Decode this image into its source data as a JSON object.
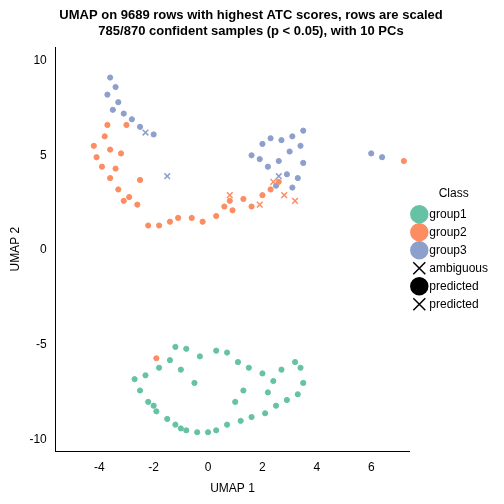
{
  "chart_data": {
    "type": "scatter",
    "title": [
      "UMAP on 9689 rows with highest ATC scores, rows are scaled",
      "785/870 confident samples (p < 0.05), with 10 PCs"
    ],
    "x_label": "UMAP 1",
    "y_label": "UMAP 2",
    "xlim": [
      -5.6,
      7.4
    ],
    "ylim": [
      -10.6,
      10.7
    ],
    "xticks": [
      -4,
      -2,
      0,
      2,
      4,
      6
    ],
    "yticks": [
      -10,
      -5,
      0,
      5,
      10
    ],
    "grid": false,
    "legend": "right",
    "legend_title": "Class",
    "series": [
      {
        "name": "group1",
        "color": "#66C2A5",
        "marker": "circle",
        "values": [
          [
            -2.7,
            -6.8
          ],
          [
            -2.5,
            -7.4
          ],
          [
            -2.2,
            -8.0
          ],
          [
            -1.9,
            -8.5
          ],
          [
            -1.5,
            -8.9
          ],
          [
            -1.2,
            -9.2
          ],
          [
            -0.8,
            -9.5
          ],
          [
            -0.4,
            -9.6
          ],
          [
            0,
            -9.6
          ],
          [
            0.3,
            -9.5
          ],
          [
            0.7,
            -9.2
          ],
          [
            1.2,
            -9.0
          ],
          [
            1.6,
            -8.8
          ],
          [
            2.1,
            -8.6
          ],
          [
            2.5,
            -8.2
          ],
          [
            2.9,
            -7.9
          ],
          [
            3.3,
            -7.6
          ],
          [
            3.5,
            -7.0
          ],
          [
            3.4,
            -6.2
          ],
          [
            3.2,
            -5.9
          ],
          [
            2.7,
            -6.3
          ],
          [
            2.4,
            -6.9
          ],
          [
            2.0,
            -6.5
          ],
          [
            1.5,
            -6.2
          ],
          [
            1.1,
            -5.9
          ],
          [
            0.7,
            -5.4
          ],
          [
            0.3,
            -5.3
          ],
          [
            -0.3,
            -5.6
          ],
          [
            -0.8,
            -5.2
          ],
          [
            -1.2,
            -5.1
          ],
          [
            -1.4,
            -5.8
          ],
          [
            -1.8,
            -6.2
          ],
          [
            -2.3,
            -6.6
          ],
          [
            -1.0,
            -6.3
          ],
          [
            -0.5,
            -7.0
          ],
          [
            1.3,
            -7.4
          ],
          [
            1.0,
            -8.0
          ],
          [
            -1.0,
            -9.4
          ],
          [
            -2.0,
            -8.2
          ],
          [
            2.2,
            -7.5
          ]
        ]
      },
      {
        "name": "group2",
        "color": "#FC8D62",
        "marker": "circle",
        "values": [
          [
            -3.7,
            6.6
          ],
          [
            -3.8,
            6.0
          ],
          [
            -4.2,
            5.5
          ],
          [
            -4.1,
            4.9
          ],
          [
            -3.6,
            5.3
          ],
          [
            -3.2,
            5.1
          ],
          [
            -3.4,
            4.3
          ],
          [
            -3.6,
            3.8
          ],
          [
            -3.3,
            3.2
          ],
          [
            -2.9,
            2.8
          ],
          [
            -2.6,
            2.4
          ],
          [
            -3.1,
            2.6
          ],
          [
            -2.2,
            1.3
          ],
          [
            -1.8,
            1.3
          ],
          [
            -1.4,
            1.5
          ],
          [
            -1.1,
            1.7
          ],
          [
            -0.6,
            1.7
          ],
          [
            -0.2,
            1.5
          ],
          [
            0.3,
            1.8
          ],
          [
            0.6,
            2.3
          ],
          [
            0.9,
            2.1
          ],
          [
            1.3,
            2.7
          ],
          [
            1.6,
            2.3
          ],
          [
            2.0,
            2.9
          ],
          [
            2.3,
            3.2
          ],
          [
            2.6,
            3.6
          ],
          [
            -3.0,
            6.6
          ],
          [
            -2.5,
            3.7
          ],
          [
            7.2,
            4.7
          ],
          [
            -1.9,
            -5.7
          ],
          [
            0.8,
            2.6
          ],
          [
            -3.9,
            4.4
          ]
        ]
      },
      {
        "name": "group3",
        "color": "#8DA0CB",
        "marker": "circle",
        "values": [
          [
            -3.6,
            9.1
          ],
          [
            -3.4,
            8.6
          ],
          [
            -3.7,
            8.2
          ],
          [
            -3.3,
            7.8
          ],
          [
            -3.5,
            7.4
          ],
          [
            -3.1,
            7.2
          ],
          [
            -2.8,
            6.9
          ],
          [
            -2.5,
            6.5
          ],
          [
            -2.0,
            6.1
          ],
          [
            1.6,
            5.0
          ],
          [
            2.0,
            5.6
          ],
          [
            2.3,
            5.9
          ],
          [
            2.7,
            5.8
          ],
          [
            3.1,
            6.0
          ],
          [
            3.5,
            6.3
          ],
          [
            3.4,
            5.5
          ],
          [
            3.0,
            5.2
          ],
          [
            2.6,
            4.7
          ],
          [
            2.2,
            4.4
          ],
          [
            2.9,
            4.0
          ],
          [
            3.3,
            3.8
          ],
          [
            3.5,
            4.6
          ],
          [
            2.5,
            3.4
          ],
          [
            3.1,
            3.3
          ],
          [
            6.0,
            5.1
          ],
          [
            6.4,
            4.9
          ],
          [
            1.9,
            4.8
          ]
        ]
      },
      {
        "name": "ambiguous",
        "color": "#000000",
        "marker": "cross",
        "values": [
          [
            -2.3,
            6.2
          ],
          [
            2.4,
            3.6
          ],
          [
            2.6,
            3.9
          ],
          [
            1.9,
            2.4
          ],
          [
            2.8,
            2.9
          ],
          [
            3.2,
            2.6
          ],
          [
            -1.5,
            3.9
          ],
          [
            0.8,
            2.9
          ]
        ],
        "colors": [
          "#8DA0CB",
          "#FC8D62",
          "#8DA0CB",
          "#FC8D62",
          "#FC8D62",
          "#FC8D62",
          "#8DA0CB",
          "#FC8D62"
        ]
      },
      {
        "name": "predicted",
        "color": "#000000",
        "marker": "small_circle",
        "values": []
      },
      {
        "name": "predicted",
        "color": "#000000",
        "marker": "small_cross",
        "values": []
      }
    ]
  }
}
